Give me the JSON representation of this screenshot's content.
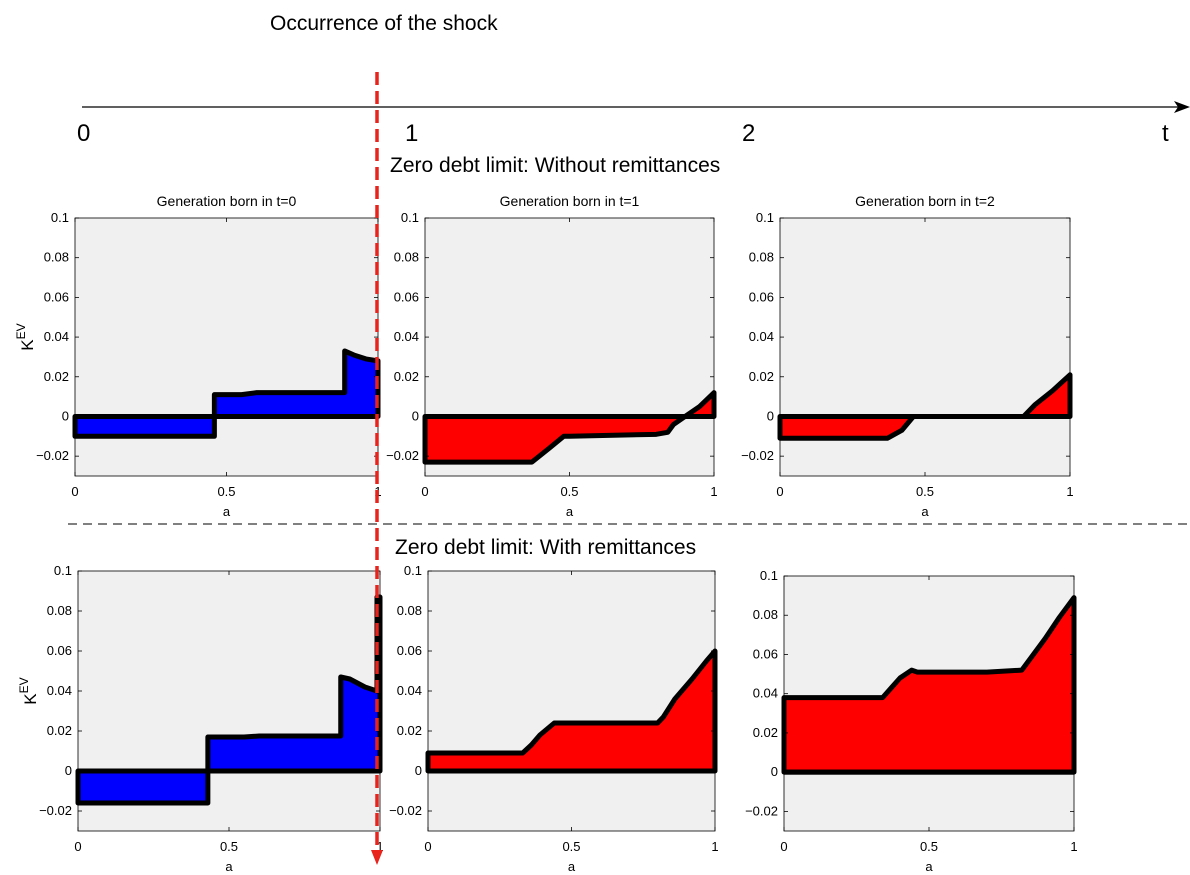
{
  "header": {
    "title": "Occurrence of the shock"
  },
  "timeline": {
    "labels": [
      "0",
      "1",
      "2",
      "t"
    ]
  },
  "sections": [
    {
      "title": "Zero debt limit: Without remittances"
    },
    {
      "title": "Zero debt limit: With remittances"
    }
  ],
  "colors": {
    "negative_gen_fill": "#0000ff",
    "positive_gen_fill": "#ff0000",
    "shock_line": "#e8231c",
    "plot_bg": "#f0f0f0"
  },
  "chart_data": [
    {
      "type": "area",
      "title": "Generation born in t=0",
      "xlabel": "a",
      "ylabel": "K^EV",
      "xlim": [
        0,
        1
      ],
      "ylim": [
        -0.03,
        0.1
      ],
      "xticks": [
        "0",
        "0.5",
        "1"
      ],
      "yticks": [
        "0.1",
        "0.08",
        "0.06",
        "0.04",
        "0.02",
        "0",
        "−0.02"
      ],
      "fill": "#0000ff",
      "series": [
        {
          "x": [
            0,
            0.46,
            0.46,
            0.55,
            0.6,
            0.89,
            0.89,
            0.92,
            0.96,
            1.0
          ],
          "y": [
            -0.01,
            -0.01,
            0.011,
            0.011,
            0.012,
            0.012,
            0.033,
            0.031,
            0.029,
            0.028
          ]
        }
      ]
    },
    {
      "type": "area",
      "title": "Generation born in t=1",
      "xlabel": "a",
      "ylabel": "",
      "xlim": [
        0,
        1
      ],
      "ylim": [
        -0.03,
        0.1
      ],
      "xticks": [
        "0",
        "0.5",
        "1"
      ],
      "yticks": [
        "0.1",
        "0.08",
        "0.06",
        "0.04",
        "0.02",
        "0",
        "−0.02"
      ],
      "fill": "#ff0000",
      "series": [
        {
          "x": [
            0,
            0.37,
            0.43,
            0.48,
            0.5,
            0.8,
            0.84,
            0.86,
            0.9,
            0.95,
            1.0
          ],
          "y": [
            -0.023,
            -0.023,
            -0.016,
            -0.01,
            -0.01,
            -0.009,
            -0.008,
            -0.004,
            0.0,
            0.005,
            0.012
          ]
        }
      ]
    },
    {
      "type": "area",
      "title": "Generation born in t=2",
      "xlabel": "a",
      "ylabel": "",
      "xlim": [
        0,
        1
      ],
      "ylim": [
        -0.03,
        0.1
      ],
      "xticks": [
        "0",
        "0.5",
        "1"
      ],
      "yticks": [
        "0.1",
        "0.08",
        "0.06",
        "0.04",
        "0.02",
        "0",
        "−0.02"
      ],
      "fill": "#ff0000",
      "series": [
        {
          "x": [
            0,
            0.37,
            0.42,
            0.46,
            0.84,
            0.88,
            0.94,
            1.0
          ],
          "y": [
            -0.011,
            -0.011,
            -0.007,
            0.0,
            0.0,
            0.006,
            0.013,
            0.021
          ]
        }
      ]
    },
    {
      "type": "area",
      "title": "",
      "xlabel": "a",
      "ylabel": "K^EV",
      "xlim": [
        0,
        1
      ],
      "ylim": [
        -0.03,
        0.1
      ],
      "xticks": [
        "0",
        "0.5",
        "1"
      ],
      "yticks": [
        "0.1",
        "0.08",
        "0.06",
        "0.04",
        "0.02",
        "0",
        "−0.02"
      ],
      "fill": "#0000ff",
      "series": [
        {
          "x": [
            0,
            0.43,
            0.43,
            0.55,
            0.6,
            0.87,
            0.87,
            0.9,
            0.95,
            0.99,
            0.99,
            1.0
          ],
          "y": [
            -0.016,
            -0.016,
            0.017,
            0.017,
            0.0175,
            0.0175,
            0.047,
            0.046,
            0.042,
            0.04,
            0.087,
            0.087
          ]
        }
      ]
    },
    {
      "type": "area",
      "title": "",
      "xlabel": "a",
      "ylabel": "",
      "xlim": [
        0,
        1
      ],
      "ylim": [
        -0.03,
        0.1
      ],
      "xticks": [
        "0",
        "0.5",
        "1"
      ],
      "yticks": [
        "0.1",
        "0.08",
        "0.06",
        "0.04",
        "0.02",
        "0",
        "−0.02"
      ],
      "fill": "#ff0000",
      "series": [
        {
          "x": [
            0,
            0.33,
            0.36,
            0.39,
            0.44,
            0.46,
            0.8,
            0.82,
            0.86,
            0.92,
            0.97,
            1.0
          ],
          "y": [
            0.009,
            0.009,
            0.013,
            0.018,
            0.024,
            0.024,
            0.024,
            0.027,
            0.036,
            0.046,
            0.055,
            0.06
          ]
        }
      ]
    },
    {
      "type": "area",
      "title": "",
      "xlabel": "a",
      "ylabel": "",
      "xlim": [
        0,
        1
      ],
      "ylim": [
        -0.03,
        0.1
      ],
      "xticks": [
        "0",
        "0.5",
        "1"
      ],
      "yticks": [
        "0.1",
        "0.08",
        "0.06",
        "0.04",
        "0.02",
        "0",
        "−0.02"
      ],
      "fill": "#ff0000",
      "series": [
        {
          "x": [
            0,
            0.34,
            0.37,
            0.4,
            0.44,
            0.46,
            0.7,
            0.82,
            0.85,
            0.9,
            0.95,
            1.0
          ],
          "y": [
            0.038,
            0.038,
            0.043,
            0.048,
            0.052,
            0.051,
            0.051,
            0.052,
            0.058,
            0.068,
            0.079,
            0.089
          ]
        }
      ]
    }
  ]
}
